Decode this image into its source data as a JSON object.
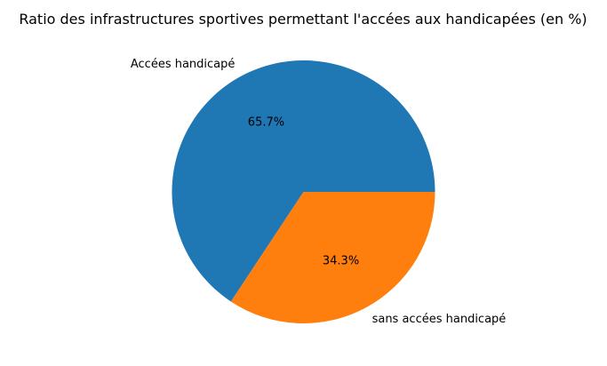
{
  "chart_data": {
    "type": "pie",
    "title": "Ratio des infrastructures sportives permettant l'accées aux handicapées (en %)",
    "labels": [
      "Accées handicapé",
      "sans accées handicapé"
    ],
    "values": [
      65.7,
      34.3
    ],
    "percent_labels": [
      "65.7%",
      "34.3%"
    ],
    "colors": [
      "#1f77b4",
      "#ff7f0e"
    ],
    "start_angle_deg": 0,
    "direction": "counterclockwise",
    "legend": "none"
  }
}
